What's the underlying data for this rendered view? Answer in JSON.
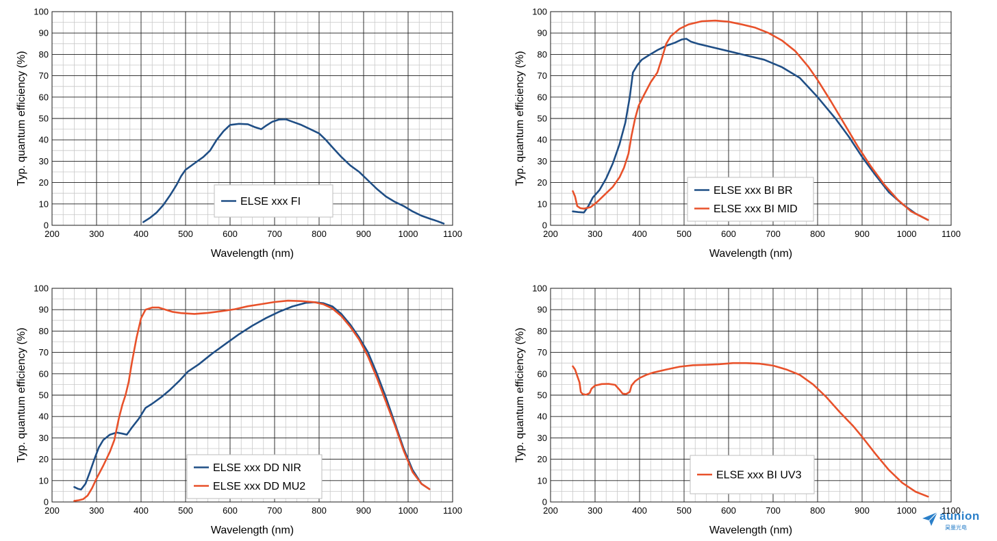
{
  "chart_data": [
    {
      "type": "line",
      "xlabel": "Wavelength (nm)",
      "ylabel": "Typ. quantum efficiency (%)",
      "xlim": [
        200,
        1100
      ],
      "ylim": [
        0,
        100
      ],
      "xticks": [
        200,
        300,
        400,
        500,
        600,
        700,
        800,
        900,
        1000,
        1100
      ],
      "yticks": [
        0,
        10,
        20,
        30,
        40,
        50,
        60,
        70,
        80,
        90,
        100
      ],
      "grid": true,
      "legend_placement": "center",
      "series": [
        {
          "name": "ELSE xxx FI",
          "color": "#1f4e85",
          "points": [
            [
              405,
              1.5
            ],
            [
              420,
              3.5
            ],
            [
              435,
              6
            ],
            [
              450,
              9.5
            ],
            [
              465,
              14
            ],
            [
              480,
              19
            ],
            [
              490,
              23
            ],
            [
              500,
              26
            ],
            [
              520,
              29
            ],
            [
              540,
              32
            ],
            [
              555,
              35
            ],
            [
              570,
              40
            ],
            [
              585,
              44
            ],
            [
              600,
              47
            ],
            [
              620,
              47.5
            ],
            [
              640,
              47.3
            ],
            [
              655,
              46
            ],
            [
              670,
              45
            ],
            [
              680,
              46.5
            ],
            [
              695,
              48.5
            ],
            [
              710,
              49.5
            ],
            [
              725,
              49.6
            ],
            [
              740,
              48.5
            ],
            [
              760,
              47
            ],
            [
              780,
              45
            ],
            [
              800,
              43
            ],
            [
              815,
              40
            ],
            [
              830,
              36.5
            ],
            [
              850,
              32
            ],
            [
              870,
              28
            ],
            [
              890,
              25
            ],
            [
              910,
              21
            ],
            [
              930,
              17
            ],
            [
              950,
              13.5
            ],
            [
              970,
              11
            ],
            [
              990,
              9
            ],
            [
              1010,
              6.5
            ],
            [
              1030,
              4.5
            ],
            [
              1050,
              3
            ],
            [
              1065,
              2
            ],
            [
              1080,
              0.8
            ]
          ]
        }
      ]
    },
    {
      "type": "line",
      "xlabel": "Wavelength (nm)",
      "ylabel": "Typ. quantum efficiency (%)",
      "xlim": [
        200,
        1100
      ],
      "ylim": [
        0,
        100
      ],
      "xticks": [
        200,
        300,
        400,
        500,
        600,
        700,
        800,
        900,
        1000,
        1100
      ],
      "yticks": [
        0,
        10,
        20,
        30,
        40,
        50,
        60,
        70,
        80,
        90,
        100
      ],
      "grid": true,
      "legend_placement": "bottom-right",
      "series": [
        {
          "name": "ELSE xxx BI BR",
          "color": "#1f4e85",
          "points": [
            [
              250,
              6.5
            ],
            [
              262,
              6.2
            ],
            [
              275,
              6
            ],
            [
              285,
              9
            ],
            [
              295,
              13
            ],
            [
              310,
              16.5
            ],
            [
              325,
              22
            ],
            [
              340,
              29
            ],
            [
              355,
              38
            ],
            [
              368,
              48
            ],
            [
              378,
              60
            ],
            [
              385,
              71.5
            ],
            [
              395,
              75
            ],
            [
              405,
              77.5
            ],
            [
              420,
              79.5
            ],
            [
              440,
              82
            ],
            [
              460,
              84
            ],
            [
              480,
              85.5
            ],
            [
              495,
              87
            ],
            [
              505,
              87.3
            ],
            [
              515,
              86
            ],
            [
              530,
              85
            ],
            [
              560,
              83.5
            ],
            [
              600,
              81.5
            ],
            [
              640,
              79.5
            ],
            [
              680,
              77.5
            ],
            [
              720,
              74
            ],
            [
              760,
              69
            ],
            [
              800,
              60
            ],
            [
              840,
              50
            ],
            [
              870,
              41.5
            ],
            [
              900,
              32
            ],
            [
              930,
              23.5
            ],
            [
              960,
              15.5
            ],
            [
              990,
              10
            ],
            [
              1020,
              5.5
            ],
            [
              1048,
              2.5
            ]
          ]
        },
        {
          "name": "ELSE xxx BI MID",
          "color": "#e8512a",
          "points": [
            [
              250,
              16
            ],
            [
              255,
              13.5
            ],
            [
              260,
              9
            ],
            [
              267,
              8
            ],
            [
              275,
              7.8
            ],
            [
              290,
              8.5
            ],
            [
              305,
              11
            ],
            [
              320,
              14
            ],
            [
              340,
              18
            ],
            [
              355,
              22.5
            ],
            [
              365,
              27
            ],
            [
              375,
              33.5
            ],
            [
              382,
              42
            ],
            [
              390,
              50
            ],
            [
              398,
              56
            ],
            [
              410,
              61
            ],
            [
              425,
              67
            ],
            [
              440,
              71.5
            ],
            [
              450,
              78
            ],
            [
              460,
              85
            ],
            [
              470,
              88.5
            ],
            [
              490,
              92
            ],
            [
              510,
              94
            ],
            [
              540,
              95.5
            ],
            [
              570,
              95.8
            ],
            [
              600,
              95.3
            ],
            [
              630,
              94
            ],
            [
              660,
              92.5
            ],
            [
              690,
              90
            ],
            [
              720,
              86.5
            ],
            [
              750,
              81.5
            ],
            [
              780,
              74
            ],
            [
              800,
              68
            ],
            [
              830,
              58
            ],
            [
              860,
              47.5
            ],
            [
              890,
              37
            ],
            [
              920,
              27.5
            ],
            [
              950,
              19
            ],
            [
              980,
              12
            ],
            [
              1010,
              6.5
            ],
            [
              1048,
              2.5
            ]
          ]
        }
      ]
    },
    {
      "type": "line",
      "xlabel": "Wavelength (nm)",
      "ylabel": "Typ. quantum efficiency (%)",
      "xlim": [
        200,
        1100
      ],
      "ylim": [
        0,
        100
      ],
      "xticks": [
        200,
        300,
        400,
        500,
        600,
        700,
        800,
        900,
        1000,
        1100
      ],
      "yticks": [
        0,
        10,
        20,
        30,
        40,
        50,
        60,
        70,
        80,
        90,
        100
      ],
      "grid": true,
      "legend_placement": "bottom-center",
      "series": [
        {
          "name": "ELSE xxx DD NIR",
          "color": "#1f4e85",
          "points": [
            [
              250,
              7
            ],
            [
              258,
              6.2
            ],
            [
              265,
              5.8
            ],
            [
              275,
              8.5
            ],
            [
              285,
              14
            ],
            [
              295,
              20
            ],
            [
              305,
              25.5
            ],
            [
              315,
              29
            ],
            [
              330,
              31.5
            ],
            [
              345,
              32.5
            ],
            [
              358,
              32
            ],
            [
              368,
              31.5
            ],
            [
              380,
              35
            ],
            [
              395,
              39
            ],
            [
              410,
              44
            ],
            [
              425,
              46
            ],
            [
              445,
              49
            ],
            [
              465,
              52.5
            ],
            [
              485,
              56.5
            ],
            [
              505,
              61
            ],
            [
              530,
              64.5
            ],
            [
              560,
              69.5
            ],
            [
              590,
              74
            ],
            [
              620,
              78.5
            ],
            [
              650,
              82.5
            ],
            [
              680,
              86
            ],
            [
              710,
              89
            ],
            [
              740,
              91.5
            ],
            [
              770,
              93.2
            ],
            [
              790,
              93.5
            ],
            [
              810,
              93
            ],
            [
              830,
              91.5
            ],
            [
              850,
              88
            ],
            [
              870,
              83
            ],
            [
              890,
              77
            ],
            [
              910,
              70
            ],
            [
              930,
              60
            ],
            [
              950,
              49
            ],
            [
              970,
              37
            ],
            [
              990,
              25
            ],
            [
              1010,
              15
            ],
            [
              1030,
              8.5
            ],
            [
              1048,
              6
            ]
          ]
        },
        {
          "name": "ELSE xxx DD MU2",
          "color": "#e8512a",
          "points": [
            [
              250,
              0.5
            ],
            [
              260,
              0.8
            ],
            [
              270,
              1.3
            ],
            [
              280,
              3
            ],
            [
              290,
              6.5
            ],
            [
              300,
              11
            ],
            [
              315,
              17
            ],
            [
              330,
              23.5
            ],
            [
              340,
              29
            ],
            [
              350,
              39
            ],
            [
              358,
              45.5
            ],
            [
              365,
              50
            ],
            [
              372,
              56
            ],
            [
              380,
              66
            ],
            [
              390,
              77
            ],
            [
              400,
              86
            ],
            [
              410,
              90
            ],
            [
              425,
              91
            ],
            [
              440,
              91
            ],
            [
              455,
              90
            ],
            [
              470,
              89
            ],
            [
              490,
              88.4
            ],
            [
              520,
              88
            ],
            [
              550,
              88.5
            ],
            [
              580,
              89.3
            ],
            [
              610,
              90.2
            ],
            [
              640,
              91.6
            ],
            [
              670,
              92.6
            ],
            [
              700,
              93.6
            ],
            [
              730,
              94.2
            ],
            [
              760,
              94
            ],
            [
              790,
              93.5
            ],
            [
              810,
              92.5
            ],
            [
              830,
              90.5
            ],
            [
              850,
              87
            ],
            [
              870,
              82
            ],
            [
              890,
              76
            ],
            [
              910,
              68
            ],
            [
              930,
              58
            ],
            [
              950,
              47
            ],
            [
              970,
              36
            ],
            [
              990,
              24
            ],
            [
              1010,
              14
            ],
            [
              1030,
              8.5
            ],
            [
              1048,
              6
            ]
          ]
        }
      ]
    },
    {
      "type": "line",
      "xlabel": "Wavelength (nm)",
      "ylabel": "Typ. quantum efficiency (%)",
      "xlim": [
        200,
        1100
      ],
      "ylim": [
        0,
        100
      ],
      "xticks": [
        200,
        300,
        400,
        500,
        600,
        700,
        800,
        900,
        1000,
        1100
      ],
      "yticks": [
        0,
        10,
        20,
        30,
        40,
        50,
        60,
        70,
        80,
        90,
        100
      ],
      "grid": true,
      "legend_placement": "bottom-right",
      "series": [
        {
          "name": "ELSE xxx BI UV3",
          "color": "#e8512a",
          "points": [
            [
              250,
              63.5
            ],
            [
              255,
              62
            ],
            [
              260,
              59
            ],
            [
              265,
              56
            ],
            [
              268,
              51.5
            ],
            [
              272,
              50.5
            ],
            [
              280,
              50.2
            ],
            [
              288,
              51
            ],
            [
              292,
              53
            ],
            [
              300,
              54.5
            ],
            [
              315,
              55.2
            ],
            [
              330,
              55.3
            ],
            [
              345,
              54.8
            ],
            [
              355,
              52.5
            ],
            [
              362,
              50.7
            ],
            [
              370,
              50.5
            ],
            [
              378,
              51.5
            ],
            [
              382,
              54.5
            ],
            [
              390,
              56.5
            ],
            [
              400,
              58
            ],
            [
              415,
              59.5
            ],
            [
              430,
              60.5
            ],
            [
              460,
              62
            ],
            [
              490,
              63.3
            ],
            [
              520,
              64
            ],
            [
              550,
              64.2
            ],
            [
              580,
              64.5
            ],
            [
              610,
              65
            ],
            [
              640,
              65
            ],
            [
              670,
              64.7
            ],
            [
              700,
              63.8
            ],
            [
              730,
              62
            ],
            [
              760,
              59.5
            ],
            [
              790,
              55
            ],
            [
              820,
              49
            ],
            [
              850,
              42
            ],
            [
              880,
              35.5
            ],
            [
              900,
              30.5
            ],
            [
              930,
              22.5
            ],
            [
              960,
              15
            ],
            [
              990,
              9
            ],
            [
              1020,
              4.8
            ],
            [
              1048,
              2.5
            ]
          ]
        }
      ]
    }
  ],
  "logo": {
    "wordmark": "aunion",
    "subtext": "昊量光电",
    "icon": "paper-plane-icon",
    "color": "#2a7fc9"
  }
}
